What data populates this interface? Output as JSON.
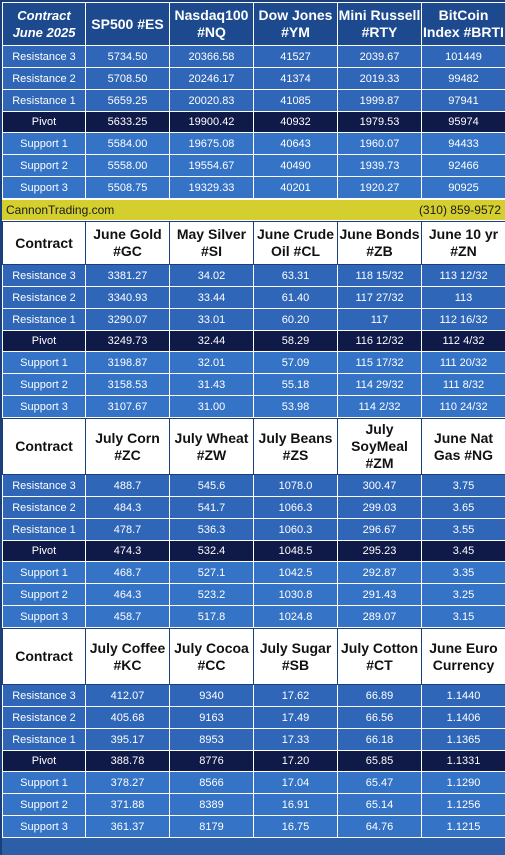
{
  "top_header": {
    "col0": "Contract June 2025",
    "cols": [
      "SP500 #ES",
      "Nasdaq100 #NQ",
      "Dow Jones #YM",
      "Mini Russell #RTY",
      "BitCoin Index #BRTI"
    ]
  },
  "labels": [
    "Resistance 3",
    "Resistance 2",
    "Resistance 1",
    "Pivot",
    "Support 1",
    "Support 2",
    "Support 3"
  ],
  "section1": [
    [
      "5734.50",
      "20366.58",
      "41527",
      "2039.67",
      "101449"
    ],
    [
      "5708.50",
      "20246.17",
      "41374",
      "2019.33",
      "99482"
    ],
    [
      "5659.25",
      "20020.83",
      "41085",
      "1999.87",
      "97941"
    ],
    [
      "5633.25",
      "19900.42",
      "40932",
      "1979.53",
      "95974"
    ],
    [
      "5584.00",
      "19675.08",
      "40643",
      "1960.07",
      "94433"
    ],
    [
      "5558.00",
      "19554.67",
      "40490",
      "1939.73",
      "92466"
    ],
    [
      "5508.75",
      "19329.33",
      "40201",
      "1920.27",
      "90925"
    ]
  ],
  "banner": {
    "site": "CannonTrading.com",
    "phone": "(310) 859-9572"
  },
  "section2_header": {
    "col0": "Contract",
    "cols": [
      "June Gold #GC",
      "May Silver #SI",
      "June Crude Oil #CL",
      "June Bonds #ZB",
      "June 10 yr #ZN"
    ]
  },
  "section2": [
    [
      "3381.27",
      "34.02",
      "63.31",
      "118 15/32",
      "113 12/32"
    ],
    [
      "3340.93",
      "33.44",
      "61.40",
      "117 27/32",
      "113"
    ],
    [
      "3290.07",
      "33.01",
      "60.20",
      "117",
      "112 16/32"
    ],
    [
      "3249.73",
      "32.44",
      "58.29",
      "116 12/32",
      "112  4/32"
    ],
    [
      "3198.87",
      "32.01",
      "57.09",
      "115 17/32",
      "111 20/32"
    ],
    [
      "3158.53",
      "31.43",
      "55.18",
      "114 29/32",
      "111  8/32"
    ],
    [
      "3107.67",
      "31.00",
      "53.98",
      "114  2/32",
      "110 24/32"
    ]
  ],
  "section3_header": {
    "col0": "Contract",
    "cols": [
      "July Corn #ZC",
      "July  Wheat #ZW",
      "July Beans #ZS",
      "July SoyMeal #ZM",
      "June Nat Gas #NG"
    ]
  },
  "section3": [
    [
      "488.7",
      "545.6",
      "1078.0",
      "300.47",
      "3.75"
    ],
    [
      "484.3",
      "541.7",
      "1066.3",
      "299.03",
      "3.65"
    ],
    [
      "478.7",
      "536.3",
      "1060.3",
      "296.67",
      "3.55"
    ],
    [
      "474.3",
      "532.4",
      "1048.5",
      "295.23",
      "3.45"
    ],
    [
      "468.7",
      "527.1",
      "1042.5",
      "292.87",
      "3.35"
    ],
    [
      "464.3",
      "523.2",
      "1030.8",
      "291.43",
      "3.25"
    ],
    [
      "458.7",
      "517.8",
      "1024.8",
      "289.07",
      "3.15"
    ]
  ],
  "section4_header": {
    "col0": "Contract",
    "cols": [
      "July Coffee #KC",
      "July Cocoa #CC",
      "July Sugar #SB",
      "July Cotton #CT",
      "June Euro Currency"
    ]
  },
  "section4": [
    [
      "412.07",
      "9340",
      "17.62",
      "66.89",
      "1.1440"
    ],
    [
      "405.68",
      "9163",
      "17.49",
      "66.56",
      "1.1406"
    ],
    [
      "395.17",
      "8953",
      "17.33",
      "66.18",
      "1.1365"
    ],
    [
      "388.78",
      "8776",
      "17.20",
      "65.85",
      "1.1331"
    ],
    [
      "378.27",
      "8566",
      "17.04",
      "65.47",
      "1.1290"
    ],
    [
      "371.88",
      "8389",
      "16.91",
      "65.14",
      "1.1256"
    ],
    [
      "361.37",
      "8179",
      "16.75",
      "64.76",
      "1.1215"
    ]
  ]
}
